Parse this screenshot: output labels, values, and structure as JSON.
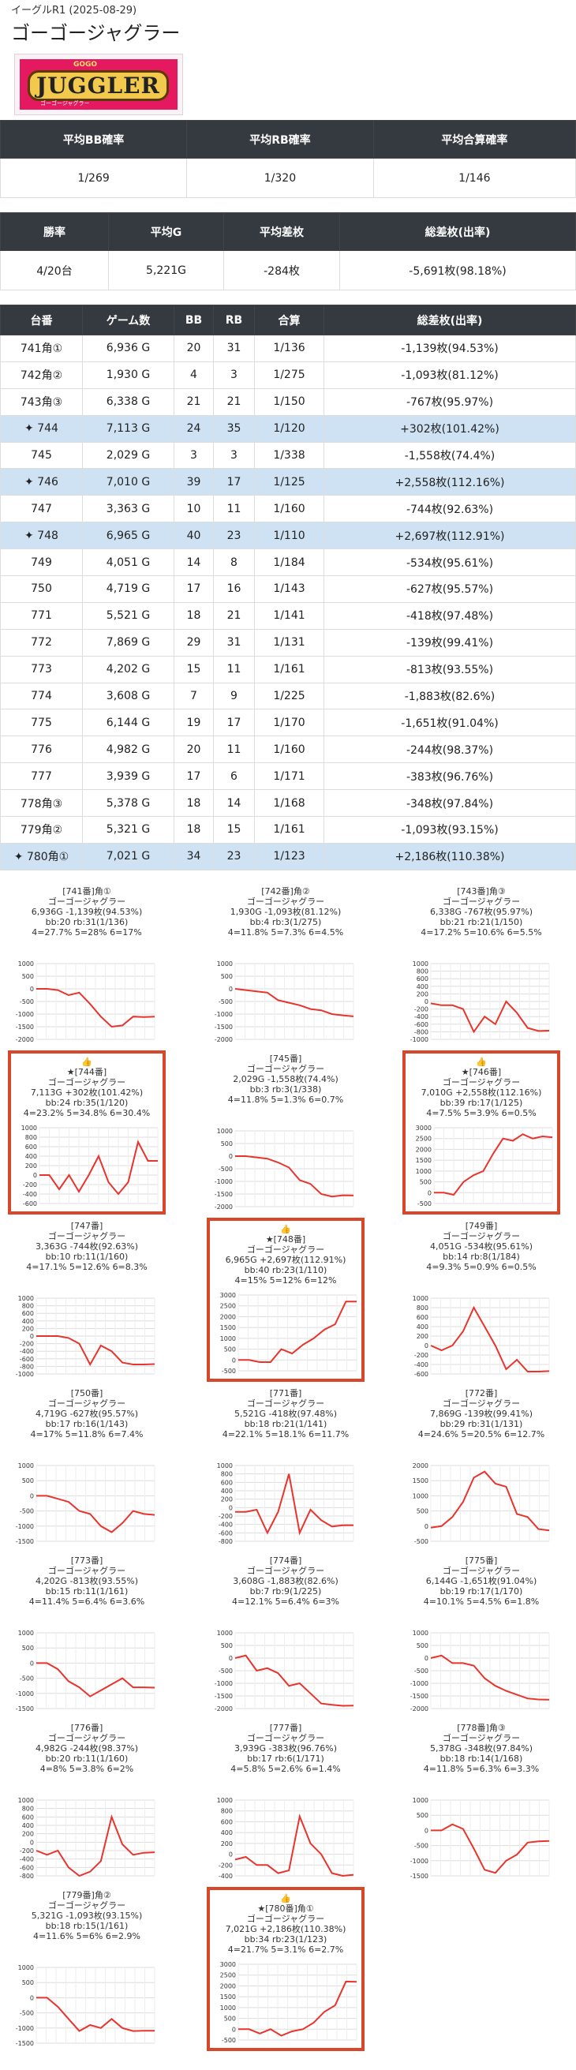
{
  "subtitle": "イーグルR1 (2025-08-29)",
  "title": "ゴーゴージャグラー",
  "logo": {
    "top": "GOGO",
    "word": "JUGGLER",
    "bottom": "ゴーゴージャグラー"
  },
  "stats1": {
    "headers": [
      "平均BB確率",
      "平均RB確率",
      "平均合算確率"
    ],
    "values": [
      "1/269",
      "1/320",
      "1/146"
    ]
  },
  "stats2": {
    "headers": [
      "勝率",
      "平均G",
      "平均差枚",
      "総差枚(出率)"
    ],
    "values": [
      "4/20台",
      "5,221G",
      "-284枚",
      "-5,691枚(98.18%)"
    ]
  },
  "table": {
    "headers": [
      "台番",
      "ゲーム数",
      "BB",
      "RB",
      "合算",
      "総差枚(出率)"
    ],
    "rows": [
      {
        "n": "741角①",
        "g": "6,936 G",
        "bb": "20",
        "rb": "31",
        "p": "1/136",
        "d": "-1,139枚(94.53%)",
        "w": false
      },
      {
        "n": "742角②",
        "g": "1,930 G",
        "bb": "4",
        "rb": "3",
        "p": "1/275",
        "d": "-1,093枚(81.12%)",
        "w": false
      },
      {
        "n": "743角③",
        "g": "6,338 G",
        "bb": "21",
        "rb": "21",
        "p": "1/150",
        "d": "-767枚(95.97%)",
        "w": false
      },
      {
        "n": "744",
        "g": "7,113 G",
        "bb": "24",
        "rb": "35",
        "p": "1/120",
        "d": "+302枚(101.42%)",
        "w": true
      },
      {
        "n": "745",
        "g": "2,029 G",
        "bb": "3",
        "rb": "3",
        "p": "1/338",
        "d": "-1,558枚(74.4%)",
        "w": false
      },
      {
        "n": "746",
        "g": "7,010 G",
        "bb": "39",
        "rb": "17",
        "p": "1/125",
        "d": "+2,558枚(112.16%)",
        "w": true
      },
      {
        "n": "747",
        "g": "3,363 G",
        "bb": "10",
        "rb": "11",
        "p": "1/160",
        "d": "-744枚(92.63%)",
        "w": false
      },
      {
        "n": "748",
        "g": "6,965 G",
        "bb": "40",
        "rb": "23",
        "p": "1/110",
        "d": "+2,697枚(112.91%)",
        "w": true
      },
      {
        "n": "749",
        "g": "4,051 G",
        "bb": "14",
        "rb": "8",
        "p": "1/184",
        "d": "-534枚(95.61%)",
        "w": false
      },
      {
        "n": "750",
        "g": "4,719 G",
        "bb": "17",
        "rb": "16",
        "p": "1/143",
        "d": "-627枚(95.57%)",
        "w": false
      },
      {
        "n": "771",
        "g": "5,521 G",
        "bb": "18",
        "rb": "21",
        "p": "1/141",
        "d": "-418枚(97.48%)",
        "w": false
      },
      {
        "n": "772",
        "g": "7,869 G",
        "bb": "29",
        "rb": "31",
        "p": "1/131",
        "d": "-139枚(99.41%)",
        "w": false
      },
      {
        "n": "773",
        "g": "4,202 G",
        "bb": "15",
        "rb": "11",
        "p": "1/161",
        "d": "-813枚(93.55%)",
        "w": false
      },
      {
        "n": "774",
        "g": "3,608 G",
        "bb": "7",
        "rb": "9",
        "p": "1/225",
        "d": "-1,883枚(82.6%)",
        "w": false
      },
      {
        "n": "775",
        "g": "6,144 G",
        "bb": "19",
        "rb": "17",
        "p": "1/170",
        "d": "-1,651枚(91.04%)",
        "w": false
      },
      {
        "n": "776",
        "g": "4,982 G",
        "bb": "20",
        "rb": "11",
        "p": "1/160",
        "d": "-244枚(98.37%)",
        "w": false
      },
      {
        "n": "777",
        "g": "3,939 G",
        "bb": "17",
        "rb": "6",
        "p": "1/171",
        "d": "-383枚(96.76%)",
        "w": false
      },
      {
        "n": "778角③",
        "g": "5,378 G",
        "bb": "18",
        "rb": "14",
        "p": "1/168",
        "d": "-348枚(97.84%)",
        "w": false
      },
      {
        "n": "779角②",
        "g": "5,321 G",
        "bb": "18",
        "rb": "15",
        "p": "1/161",
        "d": "-1,093枚(93.15%)",
        "w": false
      },
      {
        "n": "780角①",
        "g": "7,021 G",
        "bb": "34",
        "rb": "23",
        "p": "1/123",
        "d": "+2,186枚(110.38%)",
        "w": true
      }
    ]
  },
  "cards": [
    {
      "l1": "[741番]角①",
      "l2": "ゴーゴージャグラー",
      "l3": "6,936G -1,139枚(94.53%)",
      "l4": "bb:20 rb:31(1/136)",
      "l5": "4=27.7% 5=28% 6=17%",
      "w": false,
      "ticks": [
        "1000",
        "500",
        "0",
        "-500",
        "-1000",
        "-1500",
        "-2000"
      ],
      "min": -2000,
      "max": 1000,
      "pts": [
        0,
        0,
        -50,
        -250,
        -150,
        -600,
        -1100,
        -1500,
        -1450,
        -1100,
        -1120,
        -1100
      ]
    },
    {
      "l1": "[742番]角②",
      "l2": "ゴーゴージャグラー",
      "l3": "1,930G -1,093枚(81.12%)",
      "l4": "bb:4 rb:3(1/275)",
      "l5": "4=11.8% 5=7.3% 6=4.5%",
      "w": false,
      "ticks": [
        "1000",
        "500",
        "0",
        "-500",
        "-1000",
        "-1500",
        "-2000"
      ],
      "min": -2000,
      "max": 1000,
      "pts": [
        0,
        -50,
        -100,
        -150,
        -450,
        -550,
        -650,
        -800,
        -850,
        -1000,
        -1050,
        -1090
      ]
    },
    {
      "l1": "[743番]角③",
      "l2": "ゴーゴージャグラー",
      "l3": "6,338G -767枚(95.97%)",
      "l4": "bb:21 rb:21(1/150)",
      "l5": "4=17.2% 5=10.6% 6=5.5%",
      "w": false,
      "ticks": [
        "1000",
        "800",
        "600",
        "400",
        "200",
        "0",
        "-200",
        "-400",
        "-600",
        "-800",
        "-1000"
      ],
      "min": -1000,
      "max": 1000,
      "pts": [
        -50,
        -100,
        -100,
        -200,
        -800,
        -400,
        -600,
        0,
        -300,
        -700,
        -780,
        -770
      ]
    },
    {
      "l1": "★[744番]",
      "l2": "ゴーゴージャグラー",
      "l3": "7,113G +302枚(101.42%)",
      "l4": "bb:24 rb:35(1/120)",
      "l5": "4=23.2% 5=34.8% 6=30.4%",
      "w": true,
      "ticks": [
        "1000",
        "800",
        "600",
        "400",
        "200",
        "0",
        "-200",
        "-400",
        "-600"
      ],
      "min": -600,
      "max": 1000,
      "pts": [
        0,
        0,
        -300,
        0,
        -350,
        0,
        400,
        -150,
        -400,
        -150,
        700,
        300,
        300
      ]
    },
    {
      "l1": "[745番]",
      "l2": "ゴーゴージャグラー",
      "l3": "2,029G -1,558枚(74.4%)",
      "l4": "bb:3 rb:3(1/338)",
      "l5": "4=11.8% 5=1.3% 6=0.7%",
      "w": false,
      "ticks": [
        "1000",
        "500",
        "0",
        "-500",
        "-1000",
        "-1500",
        "-2000"
      ],
      "min": -2000,
      "max": 1000,
      "pts": [
        0,
        0,
        -50,
        -100,
        -250,
        -450,
        -950,
        -1100,
        -1500,
        -1600,
        -1550,
        -1560
      ]
    },
    {
      "l1": "★[746番]",
      "l2": "ゴーゴージャグラー",
      "l3": "7,010G +2,558枚(112.16%)",
      "l4": "bb:39 rb:17(1/125)",
      "l5": "4=7.5% 5=3.9% 6=0.5%",
      "w": true,
      "ticks": [
        "3000",
        "2500",
        "2000",
        "1500",
        "1000",
        "500",
        "0",
        "-500"
      ],
      "min": -500,
      "max": 3000,
      "pts": [
        0,
        0,
        -100,
        500,
        800,
        1000,
        1800,
        2500,
        2400,
        2700,
        2500,
        2600,
        2560
      ]
    },
    {
      "l1": "[747番]",
      "l2": "ゴーゴージャグラー",
      "l3": "3,363G -744枚(92.63%)",
      "l4": "bb:10 rb:11(1/160)",
      "l5": "4=17.1% 5=12.6% 6=8.3%",
      "w": false,
      "ticks": [
        "1000",
        "800",
        "600",
        "400",
        "200",
        "0",
        "-200",
        "-400",
        "-600",
        "-800",
        "-1000"
      ],
      "min": -1000,
      "max": 1000,
      "pts": [
        0,
        0,
        0,
        -50,
        -200,
        -750,
        -250,
        -400,
        -700,
        -750,
        -750,
        -740
      ]
    },
    {
      "l1": "★[748番]",
      "l2": "ゴーゴージャグラー",
      "l3": "6,965G +2,697枚(112.91%)",
      "l4": "bb:40 rb:23(1/110)",
      "l5": "4=15% 5=12% 6=12%",
      "w": true,
      "ticks": [
        "3000",
        "2500",
        "2000",
        "1500",
        "1000",
        "500",
        "0",
        "-500"
      ],
      "min": -500,
      "max": 3000,
      "pts": [
        0,
        0,
        -100,
        -100,
        500,
        300,
        700,
        1000,
        1400,
        1650,
        2700,
        2700
      ]
    },
    {
      "l1": "[749番]",
      "l2": "ゴーゴージャグラー",
      "l3": "4,051G -534枚(95.61%)",
      "l4": "bb:14 rb:8(1/184)",
      "l5": "4=9.3% 5=0.9% 6=0.5%",
      "w": false,
      "ticks": [
        "1000",
        "800",
        "600",
        "400",
        "200",
        "0",
        "-200",
        "-400",
        "-600"
      ],
      "min": -600,
      "max": 1000,
      "pts": [
        0,
        -100,
        0,
        300,
        800,
        400,
        0,
        -500,
        -300,
        -550,
        -550,
        -540
      ]
    },
    {
      "l1": "[750番]",
      "l2": "ゴーゴージャグラー",
      "l3": "4,719G -627枚(95.57%)",
      "l4": "bb:17 rb:16(1/143)",
      "l5": "4=17% 5=11.8% 6=7.4%",
      "w": false,
      "ticks": [
        "1000",
        "500",
        "0",
        "-500",
        "-1000",
        "-1500"
      ],
      "min": -1500,
      "max": 1000,
      "pts": [
        0,
        0,
        -100,
        -200,
        -500,
        -600,
        -1000,
        -1200,
        -900,
        -500,
        -600,
        -630
      ]
    },
    {
      "l1": "[771番]",
      "l2": "ゴーゴージャグラー",
      "l3": "5,521G -418枚(97.48%)",
      "l4": "bb:18 rb:21(1/141)",
      "l5": "4=22.1% 5=18.1% 6=11.7%",
      "w": false,
      "ticks": [
        "1000",
        "800",
        "600",
        "400",
        "200",
        "0",
        "-200",
        "-400",
        "-600",
        "-800"
      ],
      "min": -800,
      "max": 1000,
      "pts": [
        -100,
        -100,
        -50,
        -600,
        -100,
        800,
        -600,
        -50,
        -300,
        -450,
        -420,
        -420
      ]
    },
    {
      "l1": "[772番]",
      "l2": "ゴーゴージャグラー",
      "l3": "7,869G -139枚(99.41%)",
      "l4": "bb:29 rb:31(1/131)",
      "l5": "4=24.6% 5=20.5% 6=12.7%",
      "w": false,
      "ticks": [
        "2000",
        "1500",
        "1000",
        "500",
        "0",
        "-500"
      ],
      "min": -500,
      "max": 2000,
      "pts": [
        -50,
        0,
        300,
        800,
        1600,
        1800,
        1400,
        1300,
        400,
        300,
        -100,
        -140
      ]
    },
    {
      "l1": "[773番]",
      "l2": "ゴーゴージャグラー",
      "l3": "4,202G -813枚(93.55%)",
      "l4": "bb:15 rb:11(1/161)",
      "l5": "4=11.4% 5=6.4% 6=3.6%",
      "w": false,
      "ticks": [
        "1000",
        "500",
        "0",
        "-500",
        "-1000",
        "-1500"
      ],
      "min": -1500,
      "max": 1000,
      "pts": [
        0,
        0,
        -200,
        -600,
        -800,
        -1100,
        -900,
        -700,
        -500,
        -800,
        -800,
        -810
      ]
    },
    {
      "l1": "[774番]",
      "l2": "ゴーゴージャグラー",
      "l3": "3,608G -1,883枚(82.6%)",
      "l4": "bb:7 rb:9(1/225)",
      "l5": "4=12.1% 5=6.4% 6=3%",
      "w": false,
      "ticks": [
        "1000",
        "500",
        "0",
        "-500",
        "-1000",
        "-1500",
        "-2000"
      ],
      "min": -2000,
      "max": 1000,
      "pts": [
        0,
        100,
        -500,
        -400,
        -600,
        -1100,
        -1000,
        -1400,
        -1800,
        -1850,
        -1890,
        -1880
      ]
    },
    {
      "l1": "[775番]",
      "l2": "ゴーゴージャグラー",
      "l3": "6,144G -1,651枚(91.04%)",
      "l4": "bb:19 rb:17(1/170)",
      "l5": "4=10.1% 5=4.5% 6=1.8%",
      "w": false,
      "ticks": [
        "1000",
        "500",
        "0",
        "-500",
        "-1000",
        "-1500",
        "-2000"
      ],
      "min": -2000,
      "max": 1000,
      "pts": [
        0,
        100,
        -200,
        -200,
        -300,
        -800,
        -1100,
        -1300,
        -1450,
        -1600,
        -1640,
        -1650
      ]
    },
    {
      "l1": "[776番]",
      "l2": "ゴーゴージャグラー",
      "l3": "4,982G -244枚(98.37%)",
      "l4": "bb:20 rb:11(1/160)",
      "l5": "4=8% 5=3.8% 6=2%",
      "w": false,
      "ticks": [
        "1000",
        "800",
        "600",
        "400",
        "200",
        "0",
        "-200",
        "-400",
        "-600",
        "-800"
      ],
      "min": -800,
      "max": 1000,
      "pts": [
        -200,
        -300,
        -200,
        -600,
        -800,
        -700,
        -450,
        600,
        -50,
        -300,
        -250,
        -240
      ]
    },
    {
      "l1": "[777番]",
      "l2": "ゴーゴージャグラー",
      "l3": "3,939G -383枚(96.76%)",
      "l4": "bb:17 rb:6(1/171)",
      "l5": "4=5.8% 5=2.6% 6=1.4%",
      "w": false,
      "ticks": [
        "1000",
        "800",
        "600",
        "400",
        "200",
        "0",
        "-200",
        "-400"
      ],
      "min": -400,
      "max": 1000,
      "pts": [
        -100,
        -50,
        -200,
        -200,
        -350,
        -300,
        700,
        200,
        0,
        -350,
        -400,
        -380
      ]
    },
    {
      "l1": "[778番]角③",
      "l2": "ゴーゴージャグラー",
      "l3": "5,378G -348枚(97.84%)",
      "l4": "bb:18 rb:14(1/168)",
      "l5": "4=11.8% 5=6.3% 6=3.3%",
      "w": false,
      "ticks": [
        "1000",
        "500",
        "0",
        "-500",
        "-1000",
        "-1500"
      ],
      "min": -1500,
      "max": 1000,
      "pts": [
        0,
        0,
        200,
        50,
        -600,
        -1300,
        -1400,
        -1000,
        -800,
        -400,
        -360,
        -350
      ]
    },
    {
      "l1": "[779番]角②",
      "l2": "ゴーゴージャグラー",
      "l3": "5,321G -1,093枚(93.15%)",
      "l4": "bb:18 rb:15(1/161)",
      "l5": "4=11.6% 5=6% 6=2.9%",
      "w": false,
      "ticks": [
        "1000",
        "500",
        "0",
        "-500",
        "-1000",
        "-1500"
      ],
      "min": -1500,
      "max": 1000,
      "pts": [
        0,
        0,
        -300,
        -700,
        -1100,
        -900,
        -1000,
        -700,
        -1000,
        -1100,
        -1090,
        -1090
      ]
    },
    {
      "l1": "★[780番]角①",
      "l2": "ゴーゴージャグラー",
      "l3": "7,021G +2,186枚(110.38%)",
      "l4": "bb:34 rb:23(1/123)",
      "l5": "4=21.7% 5=3.1% 6=2.7%",
      "w": true,
      "ticks": [
        "3000",
        "2500",
        "2000",
        "1500",
        "1000",
        "500",
        "0",
        "-500"
      ],
      "min": -500,
      "max": 3000,
      "pts": [
        0,
        0,
        -200,
        0,
        -300,
        -100,
        0,
        300,
        800,
        1100,
        2200,
        2190
      ]
    }
  ]
}
